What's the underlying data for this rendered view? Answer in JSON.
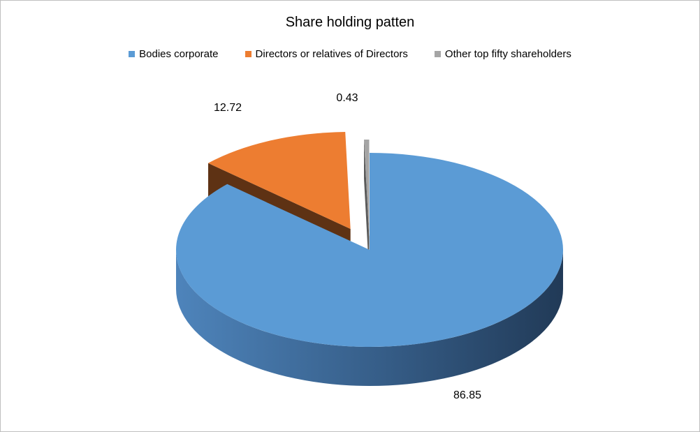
{
  "chart_data": {
    "type": "pie",
    "title": "Share holding patten",
    "legend_position": "top",
    "three_d": true,
    "series": [
      {
        "name": "Bodies corporate",
        "value": 86.85,
        "color": "#5b9bd5",
        "side_color": "#3f6f9c",
        "exploded": false
      },
      {
        "name": "Directors or relatives of Directors",
        "value": 12.72,
        "color": "#ed7d31",
        "side_color": "#5e3214",
        "exploded": true
      },
      {
        "name": "Other top fifty shareholders",
        "value": 0.43,
        "color": "#a5a5a5",
        "side_color": "#5a5a5a",
        "exploded": true
      }
    ]
  }
}
